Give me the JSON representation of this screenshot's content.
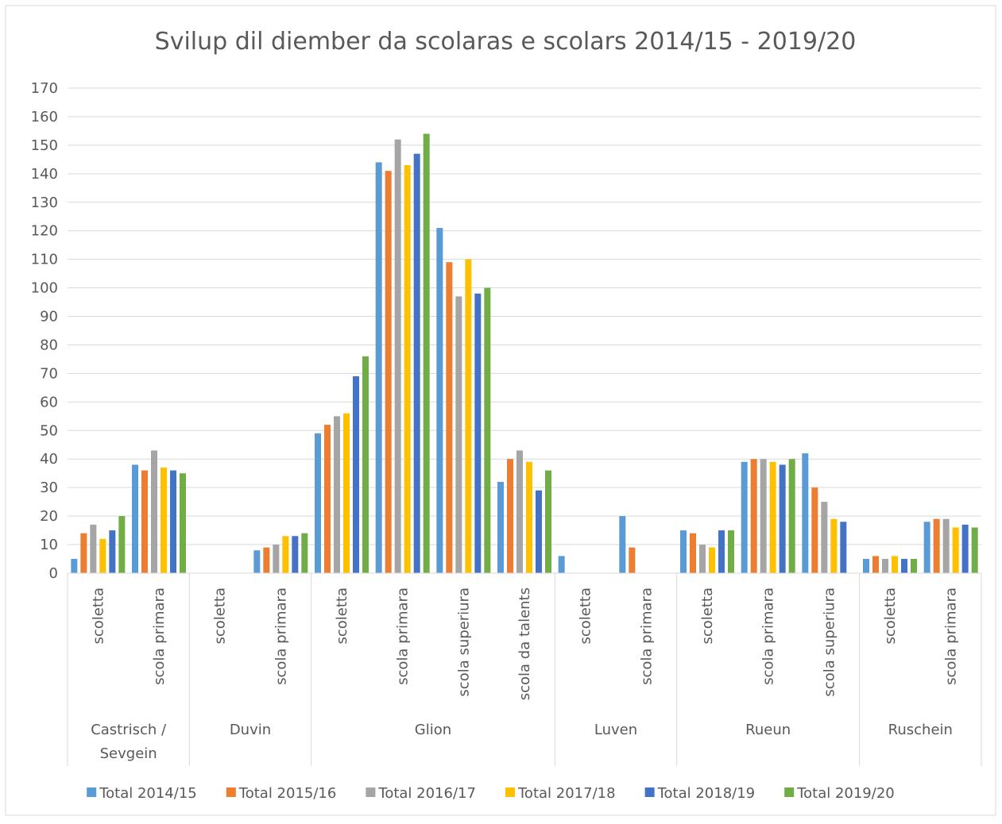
{
  "chart_data": {
    "type": "bar",
    "title": "Svilup dil diember da scolaras e scolars 2014/15 - 2019/20",
    "groups": [
      {
        "name": "Castrisch / Sevgein",
        "categories": [
          "scoletta",
          "scola primara"
        ]
      },
      {
        "name": "Duvin",
        "categories": [
          "scoletta",
          "scola primara"
        ]
      },
      {
        "name": "Glion",
        "categories": [
          "scoletta",
          "scola primara",
          "scola superiura",
          "scola da talents"
        ]
      },
      {
        "name": "Luven",
        "categories": [
          "scoletta",
          "scola primara"
        ]
      },
      {
        "name": "Rueun",
        "categories": [
          "scoletta",
          "scola primara",
          "scola superiura"
        ]
      },
      {
        "name": "Ruschein",
        "categories": [
          "scoletta",
          "scola primara"
        ]
      }
    ],
    "series": [
      {
        "name": "Total 2014/15",
        "color": "#5b9bd5",
        "values": [
          5,
          38,
          null,
          8,
          49,
          144,
          121,
          32,
          6,
          20,
          15,
          39,
          42,
          5,
          18
        ]
      },
      {
        "name": "Total 2015/16",
        "color": "#ed7d31",
        "values": [
          14,
          36,
          null,
          9,
          52,
          141,
          109,
          40,
          null,
          9,
          14,
          40,
          30,
          6,
          19
        ]
      },
      {
        "name": "Total 2016/17",
        "color": "#a5a5a5",
        "values": [
          17,
          43,
          null,
          10,
          55,
          152,
          97,
          43,
          null,
          null,
          10,
          40,
          25,
          5,
          19
        ]
      },
      {
        "name": "Total 2017/18",
        "color": "#ffc000",
        "values": [
          12,
          37,
          null,
          13,
          56,
          143,
          110,
          39,
          null,
          null,
          9,
          39,
          19,
          6,
          16
        ]
      },
      {
        "name": "Total 2018/19",
        "color": "#4472c4",
        "values": [
          15,
          36,
          null,
          13,
          69,
          147,
          98,
          29,
          null,
          null,
          15,
          38,
          18,
          5,
          17
        ]
      },
      {
        "name": "Total 2019/20",
        "color": "#70ad47",
        "values": [
          20,
          35,
          null,
          14,
          76,
          154,
          100,
          36,
          null,
          null,
          15,
          40,
          null,
          5,
          16
        ]
      }
    ],
    "ylim": [
      0,
      170
    ],
    "yticks": [
      0,
      10,
      20,
      30,
      40,
      50,
      60,
      70,
      80,
      90,
      100,
      110,
      120,
      130,
      140,
      150,
      160,
      170
    ],
    "grid": true,
    "legend": "bottom"
  }
}
